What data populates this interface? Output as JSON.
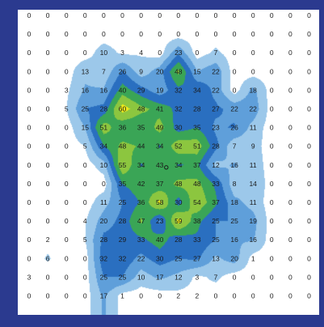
{
  "chart_data": {
    "type": "heatmap",
    "rows": [
      [
        0,
        0,
        0,
        0,
        0,
        0,
        0,
        0,
        0,
        0,
        0,
        0,
        0,
        0,
        0,
        0
      ],
      [
        0,
        0,
        0,
        0,
        0,
        0,
        0,
        0,
        0,
        0,
        0,
        0,
        0,
        0,
        0,
        0
      ],
      [
        0,
        0,
        0,
        0,
        10,
        3,
        4,
        0,
        23,
        0,
        7,
        0,
        0,
        0,
        0,
        0
      ],
      [
        0,
        0,
        0,
        13,
        7,
        26,
        9,
        20,
        48,
        15,
        22,
        0,
        0,
        0,
        0,
        0
      ],
      [
        0,
        0,
        3,
        16,
        16,
        40,
        29,
        19,
        32,
        34,
        22,
        0,
        18,
        0,
        0,
        0
      ],
      [
        0,
        0,
        5,
        25,
        28,
        60,
        48,
        41,
        32,
        28,
        27,
        22,
        22,
        0,
        0,
        0
      ],
      [
        0,
        0,
        0,
        15,
        51,
        36,
        35,
        49,
        30,
        35,
        23,
        26,
        11,
        0,
        0,
        0
      ],
      [
        0,
        0,
        0,
        5,
        34,
        48,
        44,
        34,
        52,
        51,
        28,
        7,
        9,
        0,
        0,
        0
      ],
      [
        0,
        0,
        0,
        0,
        10,
        55,
        34,
        43,
        34,
        37,
        12,
        16,
        11,
        0,
        0,
        0
      ],
      [
        0,
        0,
        0,
        0,
        0,
        35,
        42,
        37,
        48,
        48,
        33,
        8,
        14,
        0,
        0,
        0
      ],
      [
        0,
        0,
        0,
        0,
        11,
        25,
        36,
        58,
        30,
        54,
        37,
        18,
        11,
        0,
        0,
        0
      ],
      [
        0,
        0,
        0,
        4,
        20,
        28,
        47,
        23,
        59,
        38,
        25,
        25,
        19,
        0,
        0,
        0
      ],
      [
        0,
        2,
        0,
        5,
        28,
        29,
        33,
        40,
        28,
        33,
        25,
        16,
        16,
        0,
        0,
        0
      ],
      [
        0,
        6,
        0,
        0,
        32,
        32,
        22,
        30,
        25,
        27,
        13,
        20,
        1,
        0,
        0,
        0
      ],
      [
        3,
        0,
        0,
        0,
        25,
        25,
        10,
        17,
        12,
        3,
        7,
        0,
        0,
        0,
        0,
        0
      ],
      [
        0,
        0,
        0,
        0,
        17,
        1,
        0,
        0,
        2,
        2,
        0,
        0,
        0,
        0,
        0,
        0
      ]
    ],
    "contour_levels": [
      5,
      15,
      25,
      35,
      45,
      55
    ],
    "contour_colors": [
      "#9cc8ea",
      "#5f9fda",
      "#2a6fc0",
      "#3aa556",
      "#8cc63f",
      "#f0ea1a"
    ],
    "marker": {
      "row": 8,
      "col": 7.35
    }
  }
}
